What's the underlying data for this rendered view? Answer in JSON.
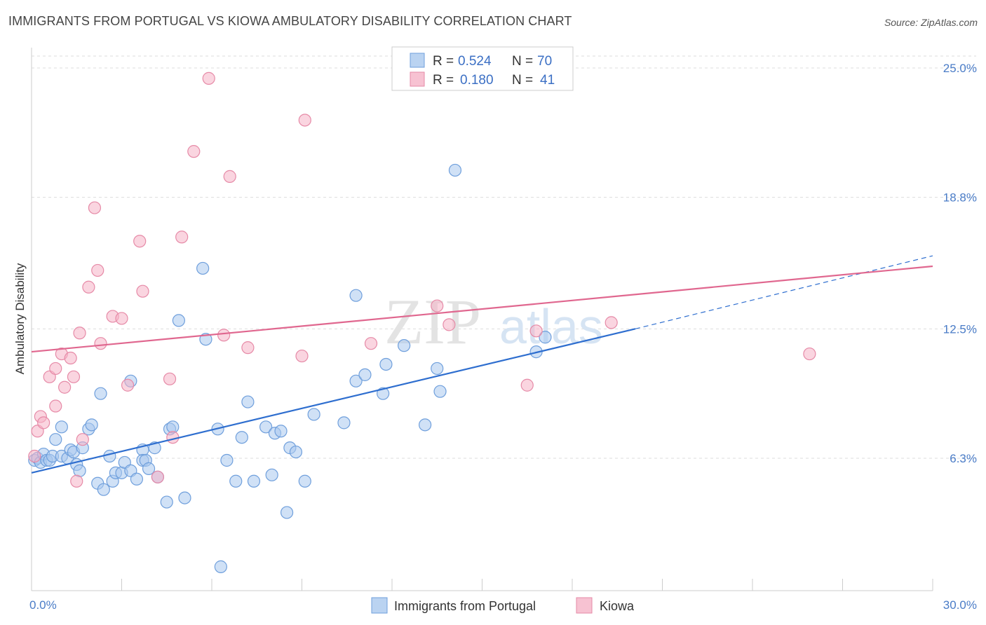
{
  "header": {
    "title": "IMMIGRANTS FROM PORTUGAL VS KIOWA AMBULATORY DISABILITY CORRELATION CHART",
    "source": "Source: ZipAtlas.com"
  },
  "watermark": {
    "zip": "ZIP",
    "atlas": "atlas"
  },
  "legend": {
    "rows": [
      {
        "r_label": "R = ",
        "r_value": "0.524",
        "n_label": "N = ",
        "n_value": "70",
        "color": "#a9c8ee"
      },
      {
        "r_label": "R = ",
        "r_value": "0.180",
        "n_label": "N = ",
        "n_value": "41",
        "color": "#f5b3c7"
      }
    ]
  },
  "chart_data": {
    "type": "scatter",
    "title": "IMMIGRANTS FROM PORTUGAL VS KIOWA AMBULATORY DISABILITY CORRELATION CHART",
    "xlabel": "",
    "ylabel": "Ambulatory Disability",
    "xlim": [
      0,
      30
    ],
    "ylim": [
      0,
      26
    ],
    "x_tick_labels": [
      {
        "value": 0,
        "label": "0.0%"
      },
      {
        "value": 30,
        "label": "30.0%"
      }
    ],
    "y_tick_labels": [
      {
        "value": 6.3,
        "label": "6.3%"
      },
      {
        "value": 12.5,
        "label": "12.5%"
      },
      {
        "value": 18.8,
        "label": "18.8%"
      },
      {
        "value": 25.0,
        "label": "25.0%"
      }
    ],
    "grid": true,
    "legend_position": "top-center",
    "series": [
      {
        "name": "Immigrants from Portugal",
        "color": "#a9c8ee",
        "edge": "#6f9fdc",
        "trend": {
          "x": [
            0,
            20.1
          ],
          "y": [
            5.6,
            12.5
          ],
          "color": "#2e6ecf",
          "dashed_extension": {
            "x": [
              20.1,
              30
            ],
            "y": [
              12.5,
              16.0
            ]
          }
        },
        "points": [
          [
            0.1,
            6.2
          ],
          [
            0.2,
            6.3
          ],
          [
            0.3,
            6.1
          ],
          [
            0.4,
            6.5
          ],
          [
            0.5,
            6.2
          ],
          [
            0.6,
            6.2
          ],
          [
            0.7,
            6.4
          ],
          [
            0.8,
            7.2
          ],
          [
            1.0,
            7.8
          ],
          [
            1.0,
            6.4
          ],
          [
            1.2,
            6.3
          ],
          [
            1.3,
            6.7
          ],
          [
            1.4,
            6.6
          ],
          [
            1.5,
            6.0
          ],
          [
            1.6,
            5.7
          ],
          [
            1.7,
            6.8
          ],
          [
            1.9,
            7.7
          ],
          [
            2.0,
            7.9
          ],
          [
            2.2,
            5.1
          ],
          [
            2.3,
            9.4
          ],
          [
            2.4,
            4.8
          ],
          [
            2.6,
            6.4
          ],
          [
            2.7,
            5.2
          ],
          [
            2.8,
            5.6
          ],
          [
            3.0,
            5.6
          ],
          [
            3.1,
            6.1
          ],
          [
            3.3,
            5.7
          ],
          [
            3.3,
            10.0
          ],
          [
            3.5,
            5.3
          ],
          [
            3.7,
            6.7
          ],
          [
            3.7,
            6.2
          ],
          [
            3.8,
            6.2
          ],
          [
            3.9,
            5.8
          ],
          [
            4.1,
            6.8
          ],
          [
            4.2,
            5.4
          ],
          [
            4.5,
            4.2
          ],
          [
            4.6,
            7.7
          ],
          [
            4.7,
            7.8
          ],
          [
            4.9,
            12.9
          ],
          [
            5.1,
            4.4
          ],
          [
            5.7,
            15.4
          ],
          [
            5.8,
            12.0
          ],
          [
            6.2,
            7.7
          ],
          [
            6.5,
            6.2
          ],
          [
            6.8,
            5.2
          ],
          [
            7.0,
            7.3
          ],
          [
            7.2,
            9.0
          ],
          [
            7.4,
            5.2
          ],
          [
            7.8,
            7.8
          ],
          [
            8.0,
            5.5
          ],
          [
            8.1,
            7.5
          ],
          [
            8.3,
            7.6
          ],
          [
            8.5,
            3.7
          ],
          [
            8.6,
            6.8
          ],
          [
            8.8,
            6.6
          ],
          [
            9.1,
            5.2
          ],
          [
            9.4,
            8.4
          ],
          [
            10.4,
            8.0
          ],
          [
            10.8,
            14.1
          ],
          [
            10.8,
            10.0
          ],
          [
            11.1,
            10.3
          ],
          [
            11.7,
            9.4
          ],
          [
            11.8,
            10.8
          ],
          [
            12.4,
            11.7
          ],
          [
            13.1,
            7.9
          ],
          [
            13.5,
            10.6
          ],
          [
            13.6,
            9.5
          ],
          [
            14.1,
            20.1
          ],
          [
            16.8,
            11.4
          ],
          [
            17.1,
            12.1
          ],
          [
            6.3,
            1.1
          ]
        ]
      },
      {
        "name": "Kiowa",
        "color": "#f5b3c7",
        "edge": "#e68aa7",
        "trend": {
          "x": [
            0,
            30
          ],
          "y": [
            11.4,
            15.5
          ],
          "color": "#e0678f"
        },
        "points": [
          [
            0.1,
            6.4
          ],
          [
            0.2,
            7.6
          ],
          [
            0.3,
            8.3
          ],
          [
            0.4,
            8.0
          ],
          [
            0.6,
            10.2
          ],
          [
            0.8,
            8.8
          ],
          [
            0.8,
            10.6
          ],
          [
            1.0,
            11.3
          ],
          [
            1.1,
            9.7
          ],
          [
            1.3,
            11.1
          ],
          [
            1.4,
            10.2
          ],
          [
            1.5,
            5.2
          ],
          [
            1.6,
            12.3
          ],
          [
            1.7,
            7.2
          ],
          [
            1.9,
            14.5
          ],
          [
            2.1,
            18.3
          ],
          [
            2.2,
            15.3
          ],
          [
            2.3,
            11.8
          ],
          [
            2.7,
            13.1
          ],
          [
            3.0,
            13.0
          ],
          [
            3.2,
            9.8
          ],
          [
            3.6,
            16.7
          ],
          [
            3.7,
            14.3
          ],
          [
            4.2,
            5.4
          ],
          [
            4.6,
            10.1
          ],
          [
            4.7,
            7.3
          ],
          [
            5.0,
            16.9
          ],
          [
            5.4,
            21.0
          ],
          [
            5.9,
            24.5
          ],
          [
            6.4,
            12.2
          ],
          [
            6.6,
            19.8
          ],
          [
            7.2,
            11.6
          ],
          [
            9.0,
            11.2
          ],
          [
            9.1,
            22.5
          ],
          [
            11.3,
            11.8
          ],
          [
            13.5,
            13.6
          ],
          [
            13.9,
            12.7
          ],
          [
            16.5,
            9.8
          ],
          [
            16.8,
            12.4
          ],
          [
            19.3,
            12.8
          ],
          [
            25.9,
            11.3
          ]
        ]
      }
    ]
  },
  "bottom_legend": [
    {
      "label": "Immigrants from Portugal",
      "color": "#a9c8ee"
    },
    {
      "label": "Kiowa",
      "color": "#f5b3c7"
    }
  ]
}
